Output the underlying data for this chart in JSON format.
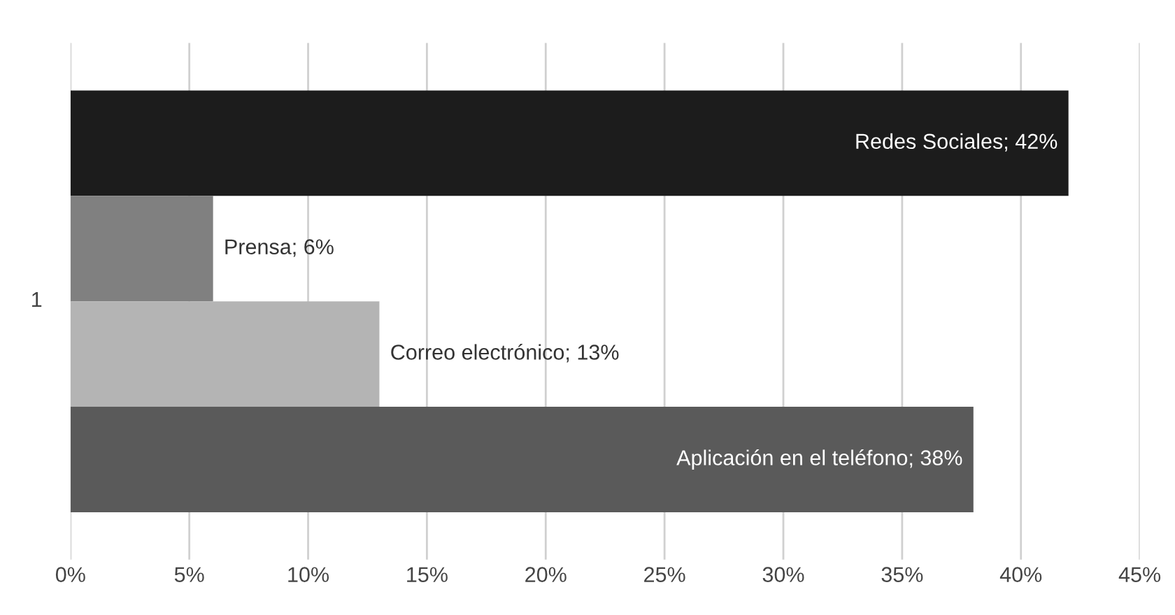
{
  "chart_data": {
    "type": "bar",
    "orientation": "horizontal",
    "categories": [
      null,
      null,
      null,
      null
    ],
    "ylabel": "1",
    "values": [
      42,
      6,
      13,
      38
    ],
    "colors": [
      "#1c1c1c",
      "#808080",
      "#b4b4b4",
      "#5a5a5a"
    ],
    "value_labels": [
      "Redes Sociales; 42%",
      "Prensa; 6%",
      "Correo electrónico; 13%",
      "Aplicación en el teléfono; 38%"
    ],
    "xlim": [
      0,
      45
    ],
    "xticks": [
      {
        "value": 0,
        "label": "0%"
      },
      {
        "value": 5,
        "label": "5%"
      },
      {
        "value": 10,
        "label": "10%"
      },
      {
        "value": 15,
        "label": "15%"
      },
      {
        "value": 20,
        "label": "20%"
      },
      {
        "value": 25,
        "label": "25%"
      },
      {
        "value": 30,
        "label": "30%"
      },
      {
        "value": 35,
        "label": "35%"
      },
      {
        "value": 40,
        "label": "40%"
      },
      {
        "value": 45,
        "label": "45%"
      }
    ],
    "grid": "x"
  }
}
